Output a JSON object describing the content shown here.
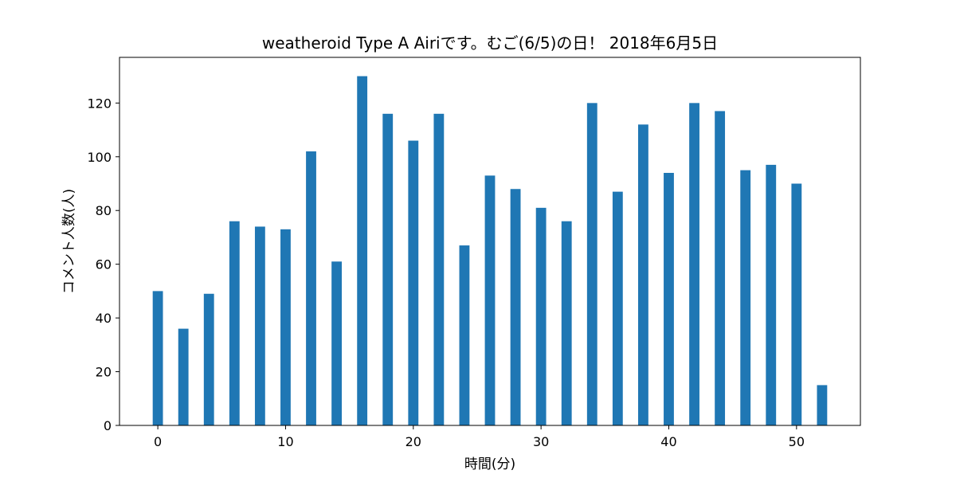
{
  "chart_data": {
    "type": "bar",
    "title": "weatheroid Type A  Airiです。むご(6/5)の日！ 2018年6月5日",
    "xlabel": "時間(分)",
    "ylabel": "コメント人数(人)",
    "x": [
      0,
      2,
      4,
      6,
      8,
      10,
      12,
      14,
      16,
      18,
      20,
      22,
      24,
      26,
      28,
      30,
      32,
      34,
      36,
      38,
      40,
      42,
      44,
      46,
      48,
      50,
      52
    ],
    "values": [
      50,
      36,
      49,
      76,
      74,
      73,
      102,
      61,
      130,
      116,
      106,
      116,
      67,
      93,
      88,
      81,
      76,
      120,
      87,
      112,
      94,
      120,
      117,
      95,
      97,
      90,
      15
    ],
    "xlim": [
      -3,
      55
    ],
    "ylim": [
      0,
      137
    ],
    "xticks": [
      0,
      10,
      20,
      30,
      40,
      50
    ],
    "yticks": [
      0,
      20,
      40,
      60,
      80,
      100,
      120
    ],
    "bar_color": "#1f77b4",
    "grid": false
  }
}
